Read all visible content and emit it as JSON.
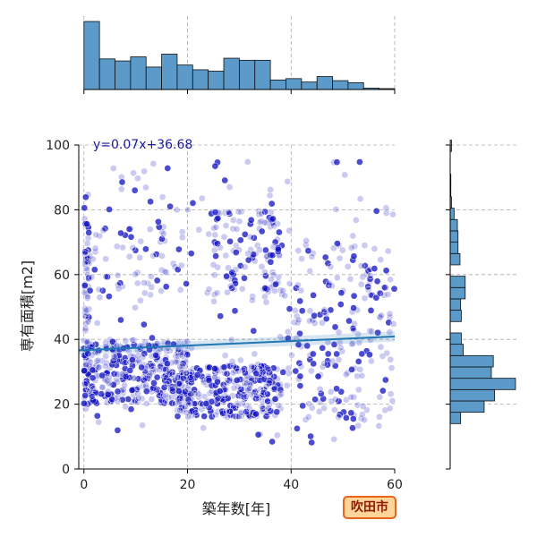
{
  "badge_label": "吹田市",
  "colors": {
    "points": "#1010c0",
    "regression_line": "#1f77b4",
    "hist_fill": "#5b9ac9",
    "hist_edge": "#111111",
    "badge_bg": "#ffd59a",
    "badge_border": "#e8641b",
    "badge_text": "#8a1a00",
    "equation_text": "#1a1aa0"
  },
  "chart_data": {
    "type": "scatter",
    "layout": "jointplot with marginal histograms",
    "xlabel": "築年数[年]",
    "ylabel": "専有面積[m2]",
    "xlim": [
      -1,
      60
    ],
    "ylim": [
      0,
      100
    ],
    "xticks": [
      0,
      20,
      40,
      60
    ],
    "yticks": [
      0,
      20,
      40,
      60,
      80,
      100
    ],
    "grid": true,
    "grid_style": "dashed",
    "annotation": "y=0.07x+36.68",
    "regression": {
      "slope": 0.07,
      "intercept": 36.68,
      "x_range": [
        -1,
        60
      ]
    },
    "marginal_x_histogram": {
      "bin_edges": [
        0,
        3,
        6,
        9,
        12,
        15,
        18,
        21,
        24,
        27,
        30,
        33,
        36,
        39,
        42,
        45,
        48,
        51,
        54,
        57,
        60
      ],
      "relative_heights": [
        1.0,
        0.45,
        0.42,
        0.48,
        0.33,
        0.52,
        0.36,
        0.29,
        0.27,
        0.46,
        0.43,
        0.43,
        0.14,
        0.16,
        0.11,
        0.19,
        0.13,
        0.1,
        0.02,
        0.0
      ]
    },
    "marginal_y_histogram": {
      "bin_edges": [
        14,
        17.5,
        21,
        24.5,
        28,
        31.5,
        35,
        38.5,
        42,
        45.5,
        49,
        52.5,
        56,
        59.5,
        63,
        66.5,
        70,
        73.5,
        77,
        80.5,
        84,
        87.5,
        91,
        94.5,
        98,
        101.5
      ],
      "relative_heights": [
        0.16,
        0.52,
        0.68,
        1.0,
        0.63,
        0.66,
        0.2,
        0.17,
        0.0,
        0.17,
        0.16,
        0.23,
        0.23,
        0.0,
        0.15,
        0.12,
        0.12,
        0.11,
        0.06,
        0.02,
        0.01,
        0.01,
        0.0,
        0.0,
        0.02
      ]
    },
    "scatter_clusters": [
      {
        "x_range": [
          0,
          1
        ],
        "y_range": [
          18,
          85
        ],
        "count": 70
      },
      {
        "x_range": [
          0,
          20
        ],
        "y_range": [
          20,
          40
        ],
        "count": 330
      },
      {
        "x_range": [
          18,
          38
        ],
        "y_range": [
          16,
          32
        ],
        "count": 300
      },
      {
        "x_range": [
          0,
          20
        ],
        "y_range": [
          55,
          75
        ],
        "count": 55
      },
      {
        "x_range": [
          24,
          38
        ],
        "y_range": [
          52,
          80
        ],
        "count": 110
      },
      {
        "x_range": [
          38,
          60
        ],
        "y_range": [
          15,
          50
        ],
        "count": 120
      },
      {
        "x_range": [
          36,
          60
        ],
        "y_range": [
          52,
          70
        ],
        "count": 60
      },
      {
        "x_range": [
          0,
          60
        ],
        "y_range": [
          8,
          95
        ],
        "count": 200
      }
    ]
  }
}
